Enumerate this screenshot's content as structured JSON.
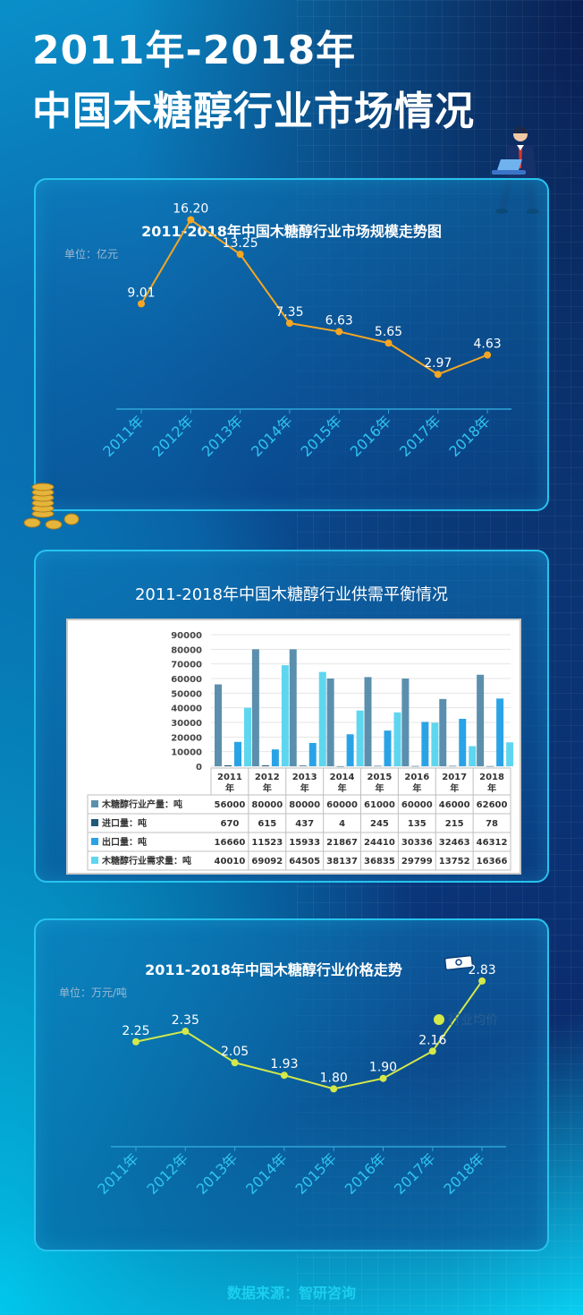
{
  "header": {
    "title_line1": "2011年-2018年",
    "title_line2": "中国木糖醇行业市场情况"
  },
  "footer": {
    "source": "数据来源：智研咨询"
  },
  "chart_data": [
    {
      "type": "line",
      "title": "2011-2018年中国木糖醇行业市场规模走势图",
      "unit": "单位：亿元",
      "categories": [
        "2011年",
        "2012年",
        "2013年",
        "2014年",
        "2015年",
        "2016年",
        "2017年",
        "2018年"
      ],
      "values": [
        9.01,
        16.2,
        13.25,
        7.35,
        6.63,
        5.65,
        2.97,
        4.63
      ],
      "labels": [
        "9.01",
        "16.20",
        "13.25",
        "7.35",
        "6.63",
        "5.65",
        "2.97",
        "4.63"
      ],
      "ylim": [
        0,
        18
      ],
      "color": "#f5a623",
      "grid": false
    },
    {
      "type": "bar",
      "title": "2011-2018年中国木糖醇行业供需平衡情况",
      "categories": [
        "2011年",
        "2012年",
        "2013年",
        "2014年",
        "2015年",
        "2016年",
        "2017年",
        "2018年"
      ],
      "category_top": [
        "2011",
        "2012",
        "2013",
        "2014",
        "2015",
        "2016",
        "2017",
        "2018"
      ],
      "category_bottom": [
        "年",
        "年",
        "年",
        "年",
        "年",
        "年",
        "年",
        "年"
      ],
      "ylim": [
        0,
        90000
      ],
      "yticks": [
        "90000",
        "80000",
        "70000",
        "60000",
        "50000",
        "40000",
        "30000",
        "20000",
        "10000",
        "0"
      ],
      "series": [
        {
          "name": "木糖醇行业产量：吨",
          "color": "#5b8fae",
          "values": [
            56000,
            80000,
            80000,
            60000,
            61000,
            60000,
            46000,
            62600
          ],
          "labels": [
            "56000",
            "80000",
            "80000",
            "60000",
            "61000",
            "60000",
            "46000",
            "62600"
          ]
        },
        {
          "name": "进口量：吨",
          "color": "#1f5a7a",
          "values": [
            670,
            615,
            437,
            4,
            245,
            135,
            215,
            78
          ],
          "labels": [
            "670",
            "615",
            "437",
            "4",
            "245",
            "135",
            "215",
            "78"
          ]
        },
        {
          "name": "出口量：吨",
          "color": "#2aa3e6",
          "values": [
            16660,
            11523,
            15933,
            21867,
            24410,
            30336,
            32463,
            46312
          ],
          "labels": [
            "16660",
            "11523",
            "15933",
            "21867",
            "24410",
            "30336",
            "32463",
            "46312"
          ]
        },
        {
          "name": "木糖醇行业需求量：吨",
          "color": "#5fd6ef",
          "values": [
            40010,
            69092,
            64505,
            38137,
            36835,
            29799,
            13752,
            16366
          ],
          "labels": [
            "40010",
            "69092",
            "64505",
            "38137",
            "36835",
            "29799",
            "13752",
            "16366"
          ]
        }
      ]
    },
    {
      "type": "line",
      "title": "2011-2018年中国木糖醇行业价格走势",
      "unit": "单位：万元/吨",
      "legend": "行业均价",
      "categories": [
        "2011年",
        "2012年",
        "2013年",
        "2014年",
        "2015年",
        "2016年",
        "2017年",
        "2018年"
      ],
      "values": [
        2.25,
        2.35,
        2.05,
        1.93,
        1.8,
        1.9,
        2.16,
        2.83
      ],
      "labels": [
        "2.25",
        "2.35",
        "2.05",
        "1.93",
        "1.80",
        "1.90",
        "2.16",
        "2.83"
      ],
      "ylim": [
        1.0,
        3.0
      ],
      "color": "#d4e84a",
      "grid": false
    }
  ]
}
